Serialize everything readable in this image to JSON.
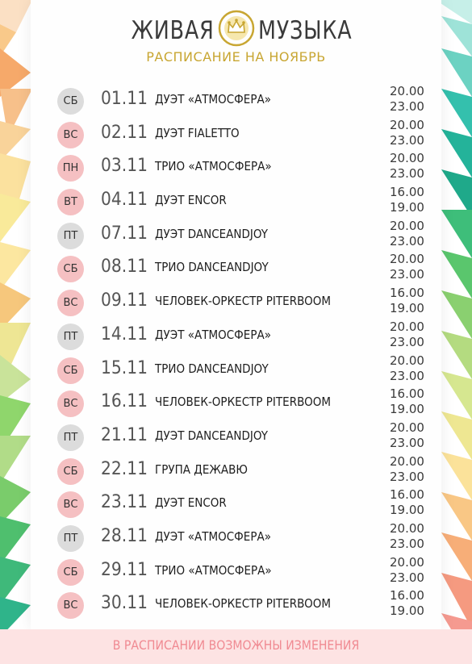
{
  "header": {
    "logo_left": "ЖИВАЯ",
    "logo_right": "МУЗЫКА",
    "subtitle": "РАСПИСАНИЕ НА НОЯБРЬ"
  },
  "colors": {
    "accent_gold": "#c8a632",
    "badge_gray": "#dcdcdc",
    "badge_pink": "#f5c0c2",
    "footer_text": "#f08a92"
  },
  "schedule": [
    {
      "day": "СБ",
      "date": "01.11",
      "event": "ДУЭТ «АТМОСФЕРА»",
      "time1": "20.00",
      "time2": "23.00",
      "badge": "gray"
    },
    {
      "day": "ВС",
      "date": "02.11",
      "event": "ДУЭТ FIALETTO",
      "time1": "20.00",
      "time2": "23.00",
      "badge": "pink"
    },
    {
      "day": "ПН",
      "date": "03.11",
      "event": "ТРИО «АТМОСФЕРА»",
      "time1": "20.00",
      "time2": "23.00",
      "badge": "pink"
    },
    {
      "day": "ВТ",
      "date": "04.11",
      "event": "ДУЭТ ENCOR",
      "time1": "16.00",
      "time2": "19.00",
      "badge": "pink"
    },
    {
      "day": "ПТ",
      "date": "07.11",
      "event": "ДУЭТ DANCEANDJOY",
      "time1": "20.00",
      "time2": "23.00",
      "badge": "gray"
    },
    {
      "day": "СБ",
      "date": "08.11",
      "event": "ТРИО DANCEANDJOY",
      "time1": "20.00",
      "time2": "23.00",
      "badge": "pink"
    },
    {
      "day": "ВС",
      "date": "09.11",
      "event": "ЧЕЛОВЕК-ОРКЕСТР PITERBOOM",
      "time1": "16.00",
      "time2": "19.00",
      "badge": "pink"
    },
    {
      "day": "ПТ",
      "date": "14.11",
      "event": "ДУЭТ «АТМОСФЕРА»",
      "time1": "20.00",
      "time2": "23.00",
      "badge": "gray"
    },
    {
      "day": "СБ",
      "date": "15.11",
      "event": "ТРИО DANCEANDJOY",
      "time1": "20.00",
      "time2": "23.00",
      "badge": "pink"
    },
    {
      "day": "ВС",
      "date": "16.11",
      "event": "ЧЕЛОВЕК-ОРКЕСТР PITERBOOM",
      "time1": "16.00",
      "time2": "19.00",
      "badge": "pink"
    },
    {
      "day": "ПТ",
      "date": "21.11",
      "event": "ДУЭТ DANCEANDJOY",
      "time1": "20.00",
      "time2": "23.00",
      "badge": "gray"
    },
    {
      "day": "СБ",
      "date": "22.11",
      "event": "ГРУПА ДЕЖАВЮ",
      "time1": "20.00",
      "time2": "23.00",
      "badge": "pink"
    },
    {
      "day": "ВС",
      "date": "23.11",
      "event": "ДУЭТ ENCOR",
      "time1": "16.00",
      "time2": "19.00",
      "badge": "pink"
    },
    {
      "day": "ПТ",
      "date": "28.11",
      "event": "ДУЭТ «АТМОСФЕРА»",
      "time1": "20.00",
      "time2": "23.00",
      "badge": "gray"
    },
    {
      "day": "СБ",
      "date": "29.11",
      "event": "ТРИО «АТМОСФЕРА»",
      "time1": "20.00",
      "time2": "23.00",
      "badge": "pink"
    },
    {
      "day": "ВС",
      "date": "30.11",
      "event": "ЧЕЛОВЕК-ОРКЕСТР PITERBOOM",
      "time1": "16.00",
      "time2": "19.00",
      "badge": "pink"
    }
  ],
  "footer": {
    "note": "В РАСПИСАНИИ ВОЗМОЖНЫ ИЗМЕНЕНИЯ"
  }
}
